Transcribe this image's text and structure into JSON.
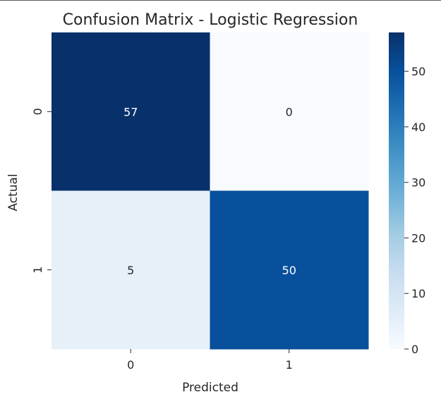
{
  "chart_data": {
    "type": "heatmap",
    "title": "Confusion Matrix - Logistic Regression",
    "xlabel": "Predicted",
    "ylabel": "Actual",
    "x_categories": [
      "0",
      "1"
    ],
    "y_categories": [
      "0",
      "1"
    ],
    "values": [
      [
        57,
        0
      ],
      [
        5,
        50
      ]
    ],
    "colormap": "Blues",
    "colors": {
      "low": "#f7fbff",
      "high": "#08306b"
    },
    "colorbar": {
      "range": [
        0,
        57
      ],
      "ticks": [
        0,
        10,
        20,
        30,
        40,
        50
      ]
    }
  }
}
